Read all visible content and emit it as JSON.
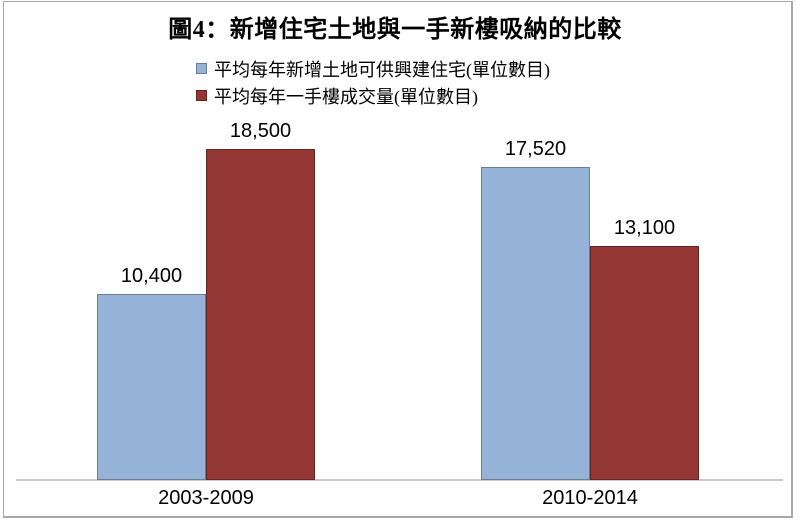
{
  "chart_data": {
    "type": "bar",
    "title": "圖4：新增住宅土地與一手新樓吸納的比較",
    "categories": [
      "2003-2009",
      "2010-2014"
    ],
    "series": [
      {
        "name": "平均每年新增土地可供興建住宅(單位數目)",
        "values": [
          10400,
          17520
        ],
        "labels": [
          "10,400",
          "17,520"
        ],
        "fill": "#95B3D7",
        "border": "#6B7C99"
      },
      {
        "name": "平均每年一手樓成交量(單位數目)",
        "values": [
          18500,
          13100
        ],
        "labels": [
          "18,500",
          "13,100"
        ],
        "fill": "#943634",
        "border": "#632423"
      }
    ],
    "xlabel": "",
    "ylabel": "",
    "ylim": [
      0,
      20000
    ],
    "grid": false,
    "legend_position": "top-left",
    "data_labels": true,
    "axis_line_color": "#C9C9C9",
    "frame_border_color": "#A8A8A8",
    "background_color": "#FFFFFF",
    "text_color": "#000000"
  }
}
